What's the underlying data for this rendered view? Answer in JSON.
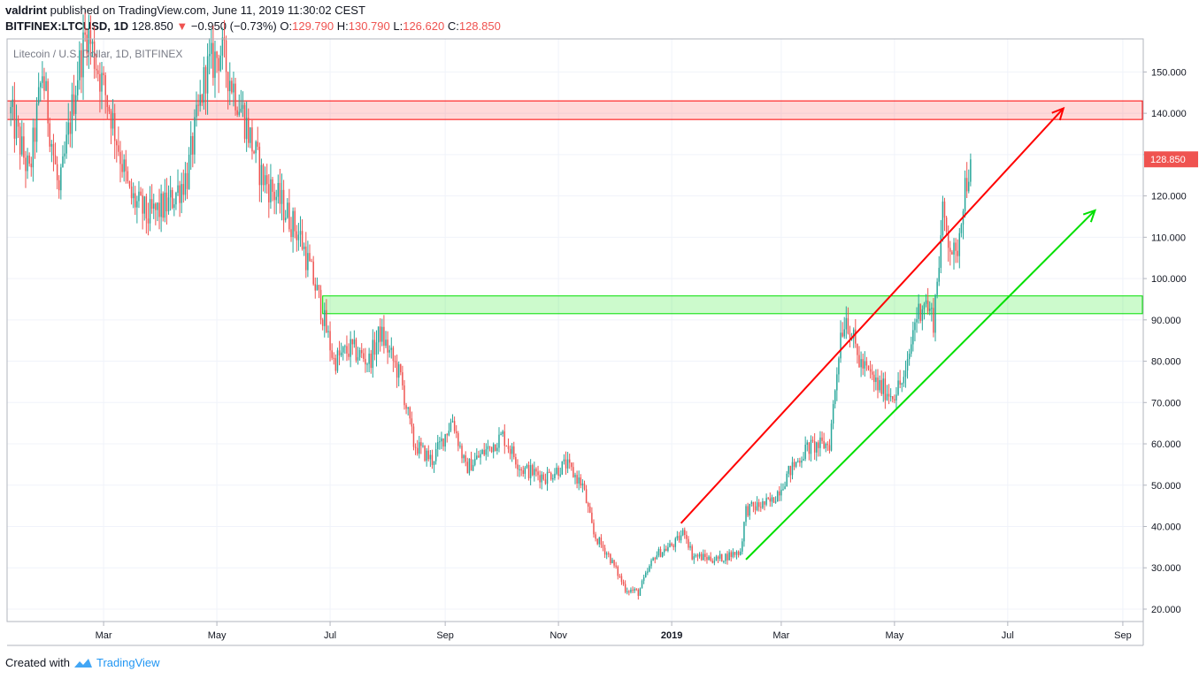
{
  "header": {
    "author": "valdrint",
    "published_text": "published on TradingView.com, June 11, 2019 11:30:02 CEST",
    "symbol": "BITFINEX:LTCUSD, 1D",
    "last": "128.850",
    "change": "−0.950 (−0.73%)",
    "o_label": "O:",
    "o": "129.790",
    "h_label": "H:",
    "h": "130.790",
    "l_label": "L:",
    "l": "126.620",
    "c_label": "C:",
    "c": "128.850"
  },
  "footer": {
    "created_with": "Created with",
    "brand": "TradingView"
  },
  "colors": {
    "up": "#26a69a",
    "down": "#ef5350",
    "resistance": "#ff0000",
    "support": "#00e000"
  },
  "chart_data": {
    "type": "candlestick",
    "title": "Litecoin / U.S. Dollar, 1D, BITFINEX",
    "ylim": [
      17,
      158
    ],
    "y_ticks": [
      "150.000",
      "140.000",
      "130.000",
      "120.000",
      "110.000",
      "100.000",
      "90.000",
      "80.000",
      "70.000",
      "60.000",
      "50.000",
      "40.000",
      "30.000",
      "20.000"
    ],
    "y_tick_values": [
      150,
      140,
      130,
      120,
      110,
      100,
      90,
      80,
      70,
      60,
      50,
      40,
      30,
      20
    ],
    "x_ticks": [
      "Mar",
      "May",
      "Jul",
      "Sep",
      "Nov",
      "2019",
      "Mar",
      "May",
      "Jul",
      "Sep"
    ],
    "x_range": [
      "2018-01-08",
      "2019-09-12"
    ],
    "x_tick_dates": [
      "2018-03-01",
      "2018-05-01",
      "2018-07-01",
      "2018-09-01",
      "2018-11-01",
      "2019-01-01",
      "2019-03-01",
      "2019-05-01",
      "2019-07-01",
      "2019-09-01"
    ],
    "last_price_label": "128.850",
    "last_price": 128.85,
    "price_path": [
      [
        "2018-01-10",
        140
      ],
      [
        "2018-01-20",
        125
      ],
      [
        "2018-01-27",
        150
      ],
      [
        "2018-02-05",
        120
      ],
      [
        "2018-02-15",
        150
      ],
      [
        "2018-02-20",
        160
      ],
      [
        "2018-03-05",
        140
      ],
      [
        "2018-03-15",
        120
      ],
      [
        "2018-03-25",
        115
      ],
      [
        "2018-04-05",
        118
      ],
      [
        "2018-04-15",
        125
      ],
      [
        "2018-04-25",
        150
      ],
      [
        "2018-05-03",
        155
      ],
      [
        "2018-05-15",
        140
      ],
      [
        "2018-05-25",
        125
      ],
      [
        "2018-06-05",
        118
      ],
      [
        "2018-06-15",
        110
      ],
      [
        "2018-06-25",
        95
      ],
      [
        "2018-07-03",
        80
      ],
      [
        "2018-07-12",
        83
      ],
      [
        "2018-07-22",
        80
      ],
      [
        "2018-07-28",
        87
      ],
      [
        "2018-08-08",
        76
      ],
      [
        "2018-08-15",
        60
      ],
      [
        "2018-08-25",
        56
      ],
      [
        "2018-09-05",
        66
      ],
      [
        "2018-09-12",
        54
      ],
      [
        "2018-09-22",
        58
      ],
      [
        "2018-10-02",
        62
      ],
      [
        "2018-10-12",
        54
      ],
      [
        "2018-10-25",
        52
      ],
      [
        "2018-11-05",
        55
      ],
      [
        "2018-11-14",
        50
      ],
      [
        "2018-11-20",
        38
      ],
      [
        "2018-11-28",
        33
      ],
      [
        "2018-12-07",
        25
      ],
      [
        "2018-12-14",
        24
      ],
      [
        "2018-12-23",
        33
      ],
      [
        "2019-01-03",
        36
      ],
      [
        "2019-01-08",
        39
      ],
      [
        "2019-01-12",
        33
      ],
      [
        "2019-01-25",
        32
      ],
      [
        "2019-02-07",
        34
      ],
      [
        "2019-02-10",
        44
      ],
      [
        "2019-02-24",
        46
      ],
      [
        "2019-03-05",
        53
      ],
      [
        "2019-03-15",
        59
      ],
      [
        "2019-03-27",
        60
      ],
      [
        "2019-04-02",
        87
      ],
      [
        "2019-04-05",
        91
      ],
      [
        "2019-04-12",
        80
      ],
      [
        "2019-04-22",
        74
      ],
      [
        "2019-04-30",
        72
      ],
      [
        "2019-05-07",
        76
      ],
      [
        "2019-05-12",
        90
      ],
      [
        "2019-05-17",
        95
      ],
      [
        "2019-05-22",
        90
      ],
      [
        "2019-05-27",
        115
      ],
      [
        "2019-06-03",
        104
      ],
      [
        "2019-06-07",
        120
      ],
      [
        "2019-06-11",
        128.85
      ]
    ],
    "zones": [
      {
        "name": "resistance-zone",
        "from": 138.5,
        "to": 143.0,
        "start": "2018-01-08",
        "end": "2019-09-12"
      },
      {
        "name": "support-zone",
        "from": 91.5,
        "to": 95.8,
        "start": "2018-06-27",
        "end": "2019-09-12"
      }
    ],
    "trendlines": [
      {
        "name": "red-trend-arrow",
        "from": [
          "2019-01-06",
          40.8
        ],
        "to": [
          "2019-07-31",
          141.2
        ]
      },
      {
        "name": "green-trend-arrow",
        "from": [
          "2019-02-10",
          32.0
        ],
        "to": [
          "2019-08-17",
          116.5
        ]
      }
    ]
  }
}
